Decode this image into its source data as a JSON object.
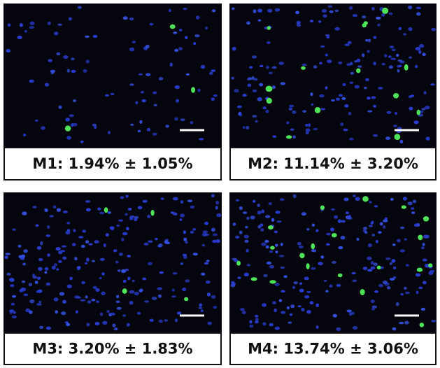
{
  "panels": [
    {
      "label": "M1: 1.94% ± 1.05%"
    },
    {
      "label": "M2: 11.14% ± 3.20%"
    },
    {
      "label": "M3: 3.20% ± 1.83%"
    },
    {
      "label": "M4: 13.74% ± 3.06%"
    }
  ]
}
